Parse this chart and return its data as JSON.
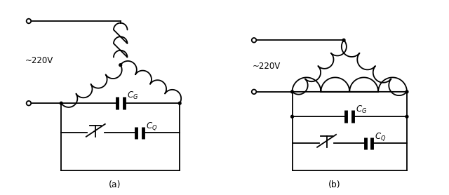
{
  "bg_color": "#ffffff",
  "line_color": "#000000",
  "fig_width": 6.4,
  "fig_height": 2.78,
  "label_a": "(a)",
  "label_b": "(b)",
  "voltage_label": "~220V"
}
